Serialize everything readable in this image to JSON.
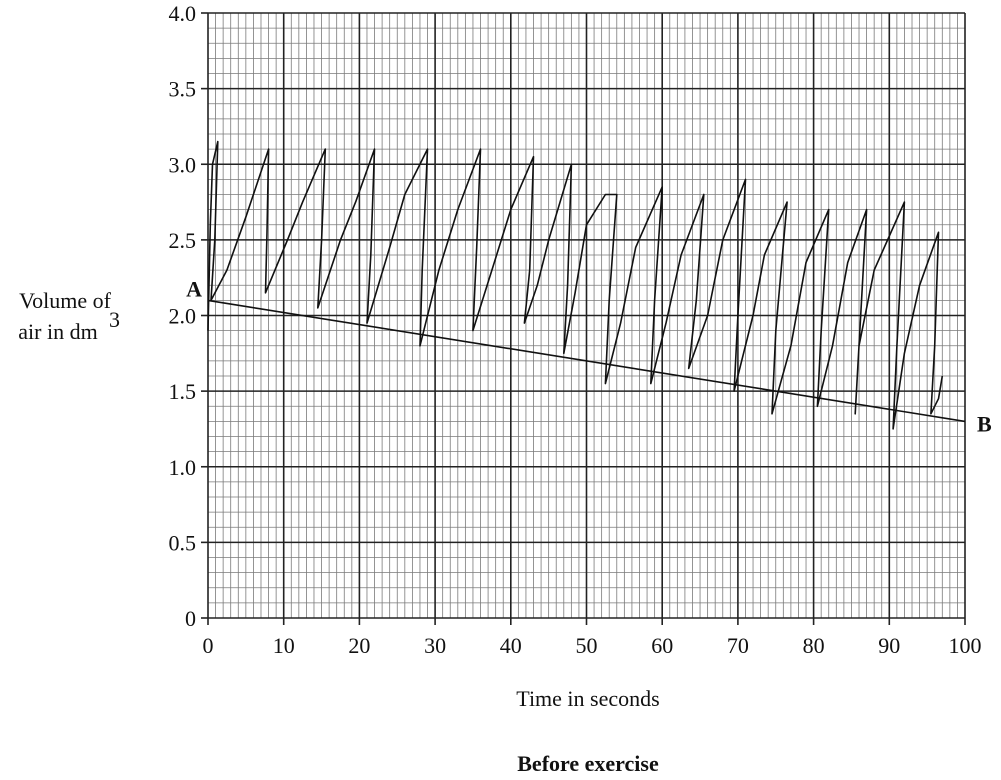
{
  "chart_data": {
    "type": "line",
    "title": "",
    "caption": "Before exercise",
    "xlabel": "Time in seconds",
    "ylabel_line1": "Volume of",
    "ylabel_line2": "air in dm",
    "ylabel_sup": "3",
    "xlim": [
      0,
      100
    ],
    "ylim": [
      0,
      4.0
    ],
    "x_ticks": [
      0,
      10,
      20,
      30,
      40,
      50,
      60,
      70,
      80,
      90,
      100
    ],
    "x_tick_labels": [
      "0",
      "10",
      "20",
      "30",
      "40",
      "50",
      "60",
      "70",
      "80",
      "90",
      "100"
    ],
    "y_ticks": [
      0,
      0.5,
      1.0,
      1.5,
      2.0,
      2.5,
      3.0,
      3.5,
      4.0
    ],
    "y_tick_labels": [
      "0",
      "0.5",
      "1.0",
      "1.5",
      "2.0",
      "2.5",
      "3.0",
      "3.5",
      "4.0"
    ],
    "grid": true,
    "series": [
      {
        "values": [
          [
            0.0,
            1.9
          ],
          [
            0.3,
            2.6
          ],
          [
            0.6,
            3.0
          ],
          [
            1.3,
            3.15
          ],
          [
            0.9,
            2.5
          ],
          [
            0.4,
            2.1
          ],
          [
            2.5,
            2.3
          ],
          [
            5.0,
            2.65
          ],
          [
            8.0,
            3.1
          ],
          [
            7.8,
            2.55
          ],
          [
            7.6,
            2.15
          ],
          [
            10.5,
            2.5
          ],
          [
            12.5,
            2.75
          ],
          [
            15.5,
            3.1
          ],
          [
            15.0,
            2.5
          ],
          [
            14.5,
            2.05
          ],
          [
            17.5,
            2.5
          ],
          [
            19.5,
            2.75
          ],
          [
            22.0,
            3.1
          ],
          [
            21.5,
            2.4
          ],
          [
            21.0,
            1.95
          ],
          [
            24.0,
            2.45
          ],
          [
            26.0,
            2.8
          ],
          [
            29.0,
            3.1
          ],
          [
            28.3,
            2.3
          ],
          [
            28.0,
            1.8
          ],
          [
            30.5,
            2.3
          ],
          [
            33.0,
            2.7
          ],
          [
            36.0,
            3.1
          ],
          [
            35.5,
            2.45
          ],
          [
            35.0,
            1.9
          ],
          [
            37.5,
            2.3
          ],
          [
            40.0,
            2.7
          ],
          [
            43.0,
            3.05
          ],
          [
            42.5,
            2.3
          ],
          [
            41.8,
            1.95
          ],
          [
            43.5,
            2.2
          ],
          [
            45.0,
            2.5
          ],
          [
            48.0,
            3.0
          ],
          [
            47.5,
            2.2
          ],
          [
            47.0,
            1.75
          ],
          [
            48.5,
            2.15
          ],
          [
            50.0,
            2.6
          ],
          [
            52.5,
            2.8
          ],
          [
            54.0,
            2.8
          ],
          [
            53.0,
            2.1
          ],
          [
            52.5,
            1.55
          ],
          [
            54.5,
            1.95
          ],
          [
            56.5,
            2.45
          ],
          [
            60.0,
            2.85
          ],
          [
            59.0,
            2.1
          ],
          [
            58.5,
            1.55
          ],
          [
            60.5,
            1.95
          ],
          [
            62.5,
            2.4
          ],
          [
            65.5,
            2.8
          ],
          [
            64.5,
            2.1
          ],
          [
            63.5,
            1.65
          ],
          [
            66.0,
            2.0
          ],
          [
            68.0,
            2.5
          ],
          [
            71.0,
            2.9
          ],
          [
            70.0,
            2.0
          ],
          [
            69.5,
            1.5
          ],
          [
            72.0,
            2.0
          ],
          [
            73.5,
            2.4
          ],
          [
            76.5,
            2.75
          ],
          [
            75.0,
            1.9
          ],
          [
            74.5,
            1.35
          ],
          [
            77.0,
            1.8
          ],
          [
            79.0,
            2.35
          ],
          [
            82.0,
            2.7
          ],
          [
            81.0,
            1.9
          ],
          [
            80.5,
            1.4
          ],
          [
            82.5,
            1.8
          ],
          [
            84.5,
            2.35
          ],
          [
            87.0,
            2.7
          ],
          [
            86.0,
            1.8
          ],
          [
            85.5,
            1.35
          ],
          [
            86.0,
            1.8
          ],
          [
            88.0,
            2.3
          ],
          [
            92.0,
            2.75
          ],
          [
            91.0,
            1.8
          ],
          [
            90.5,
            1.25
          ],
          [
            92.0,
            1.75
          ],
          [
            94.0,
            2.2
          ],
          [
            96.5,
            2.55
          ],
          [
            96.0,
            1.8
          ],
          [
            95.5,
            1.35
          ],
          [
            96.5,
            1.45
          ],
          [
            97.0,
            1.6
          ]
        ]
      },
      {
        "values": [
          [
            0,
            2.1
          ],
          [
            100,
            1.3
          ]
        ]
      }
    ],
    "annotations": [
      {
        "text": "A",
        "x": 0,
        "y": 2.1
      },
      {
        "text": "B",
        "x": 100,
        "y": 1.3
      }
    ]
  }
}
